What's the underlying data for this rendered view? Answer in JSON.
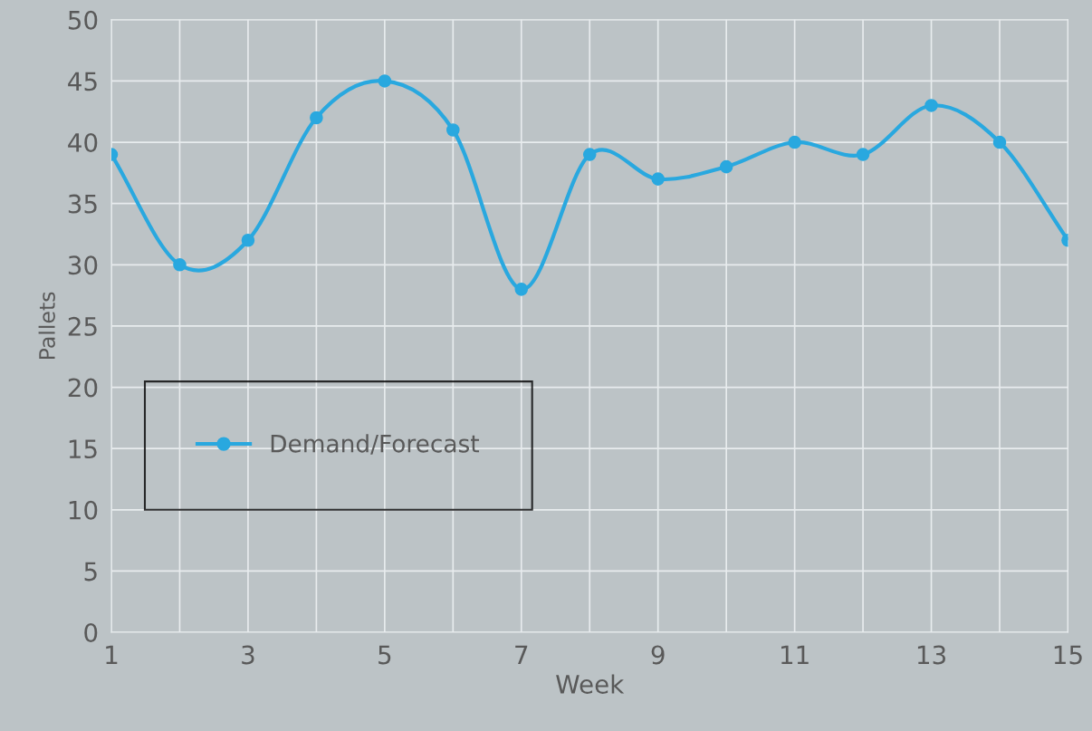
{
  "chart_data": {
    "type": "line",
    "xlabel": "Week",
    "ylabel": "Pallets",
    "x": [
      1,
      2,
      3,
      4,
      5,
      6,
      7,
      8,
      9,
      10,
      11,
      12,
      13,
      14,
      15
    ],
    "series": [
      {
        "name": "Demand/Forecast",
        "color": "#29a8df",
        "values": [
          39,
          30,
          32,
          42,
          45,
          41,
          28,
          39,
          37,
          38,
          40,
          39,
          43,
          40,
          32
        ]
      }
    ],
    "xlim": [
      1,
      15
    ],
    "xticks": [
      1,
      {
        "value": 2,
        "label": null
      },
      3,
      {
        "value": 4,
        "label": null
      },
      5,
      {
        "value": 6,
        "label": null
      },
      7,
      {
        "value": 8,
        "label": null
      },
      9,
      {
        "value": 10,
        "label": null
      },
      11,
      {
        "value": 12,
        "label": null
      },
      13,
      {
        "value": 14,
        "label": null
      },
      15
    ],
    "ylim": [
      0,
      50
    ],
    "yticks": [
      0,
      5,
      10,
      15,
      20,
      25,
      30,
      35,
      40,
      45,
      50
    ],
    "grid": true,
    "legend": "left",
    "marker": "circle",
    "line_style": "solid"
  }
}
